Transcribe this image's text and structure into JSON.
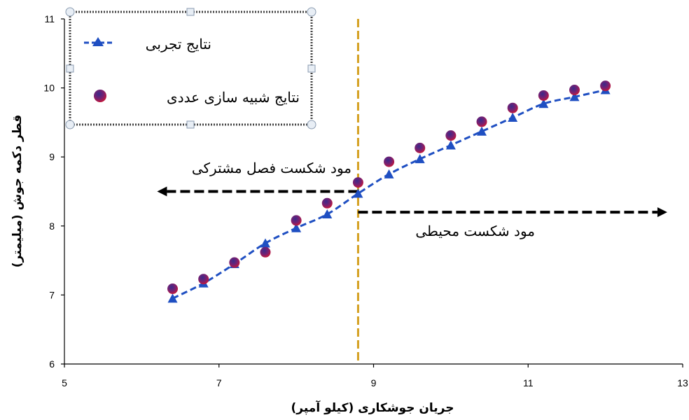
{
  "chart_data": {
    "type": "line",
    "title": "",
    "xlabel": "جریان جوشکاری (کیلو آمپر)",
    "ylabel": "قطر دکمه جوش (میلیمتر)",
    "xlim": [
      5,
      13
    ],
    "ylim": [
      6,
      11
    ],
    "x_ticks": [
      "5",
      "7",
      "9",
      "11",
      "13"
    ],
    "y_ticks": [
      "6",
      "7",
      "8",
      "9",
      "10",
      "11"
    ],
    "grid": false,
    "legend_position": "top-left",
    "series": [
      {
        "name": "نتایج تجربی",
        "style": "dashed-line-triangle",
        "color": "#1f4fc2",
        "points": [
          {
            "x": 6.4,
            "y": 6.95
          },
          {
            "x": 6.8,
            "y": 7.17
          },
          {
            "x": 7.2,
            "y": 7.45
          },
          {
            "x": 7.6,
            "y": 7.75
          },
          {
            "x": 8.0,
            "y": 7.97
          },
          {
            "x": 8.4,
            "y": 8.17
          },
          {
            "x": 8.8,
            "y": 8.47
          },
          {
            "x": 9.2,
            "y": 8.75
          },
          {
            "x": 9.6,
            "y": 8.97
          },
          {
            "x": 10.0,
            "y": 9.17
          },
          {
            "x": 10.4,
            "y": 9.37
          },
          {
            "x": 10.8,
            "y": 9.57
          },
          {
            "x": 11.2,
            "y": 9.77
          },
          {
            "x": 11.6,
            "y": 9.87
          },
          {
            "x": 12.0,
            "y": 9.97
          }
        ]
      },
      {
        "name": "نتایج شبیه سازی عددی",
        "style": "markers-circle",
        "color": "#c0183c",
        "points": [
          {
            "x": 6.4,
            "y": 7.09
          },
          {
            "x": 6.8,
            "y": 7.23
          },
          {
            "x": 7.2,
            "y": 7.47
          },
          {
            "x": 7.6,
            "y": 7.62
          },
          {
            "x": 8.0,
            "y": 8.08
          },
          {
            "x": 8.4,
            "y": 8.33
          },
          {
            "x": 8.8,
            "y": 8.63
          },
          {
            "x": 9.2,
            "y": 8.93
          },
          {
            "x": 9.6,
            "y": 9.13
          },
          {
            "x": 10.0,
            "y": 9.31
          },
          {
            "x": 10.4,
            "y": 9.51
          },
          {
            "x": 10.8,
            "y": 9.71
          },
          {
            "x": 11.2,
            "y": 9.89
          },
          {
            "x": 11.6,
            "y": 9.97
          },
          {
            "x": 12.0,
            "y": 10.03
          }
        ]
      }
    ],
    "reference_line": {
      "x": 8.8,
      "color": "#d4a020",
      "style": "dashed"
    },
    "annotations": [
      {
        "text": "مود شکست فصل مشترکی",
        "arrow": "left",
        "arrow_x": [
          8.8,
          6.2
        ],
        "arrow_y": 8.5
      },
      {
        "text": "مود شکست محیطی",
        "arrow": "right",
        "arrow_x": [
          8.8,
          12.8
        ],
        "arrow_y": 8.2
      }
    ]
  }
}
